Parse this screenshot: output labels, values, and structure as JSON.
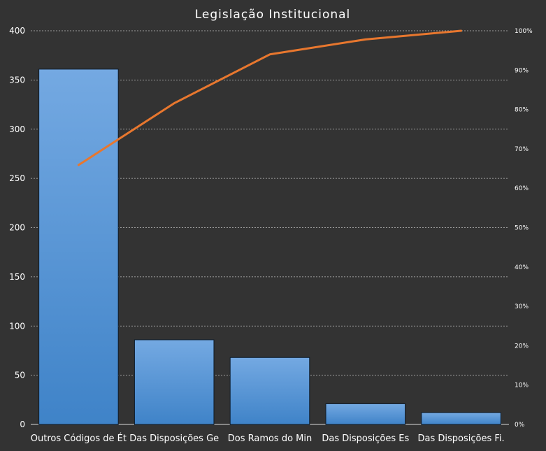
{
  "chart_data": {
    "type": "bar",
    "title": "Legislação Institucional",
    "categories": [
      "Outros Códigos de Ét",
      "Das Disposições Ge",
      "Dos Ramos do Min",
      "Das Disposições Es",
      "Das Disposições Fi."
    ],
    "series": [
      {
        "type": "bar",
        "axis": "left",
        "values": [
          361,
          86,
          68,
          21,
          12
        ]
      },
      {
        "type": "line",
        "axis": "right",
        "values": [
          65.9,
          81.6,
          94.0,
          97.8,
          100.0
        ]
      }
    ],
    "ylim": [
      0,
      400
    ],
    "y_ticks": [
      "0",
      "50",
      "100",
      "150",
      "200",
      "250",
      "300",
      "350",
      "400"
    ],
    "y2lim": [
      0,
      100
    ],
    "y2_ticks": [
      "0%",
      "10%",
      "20%",
      "30%",
      "40%",
      "50%",
      "60%",
      "70%",
      "80%",
      "90%",
      "100%"
    ],
    "grid": true,
    "legend": "none",
    "colors": {
      "background": "#333333",
      "bar_top": "#74a9e2",
      "bar_bottom": "#3f83c8",
      "bar_edge": "#0d1b2a",
      "line": "#e8772e",
      "grid": "#bfbfbf",
      "text": "#ffffff"
    }
  }
}
